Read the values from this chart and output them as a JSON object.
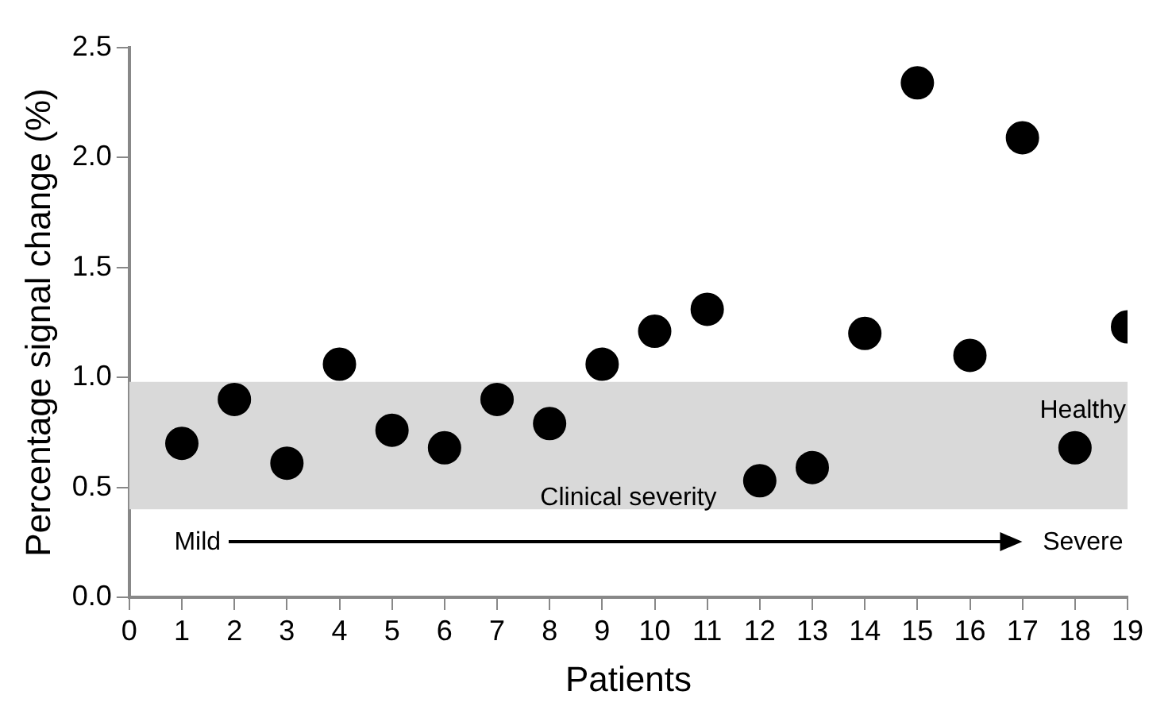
{
  "chart_data": {
    "type": "scatter",
    "xlabel": "Patients",
    "ylabel": "Percentage signal change (%)",
    "x": [
      1,
      2,
      3,
      4,
      5,
      6,
      7,
      8,
      9,
      10,
      11,
      12,
      13,
      14,
      15,
      16,
      17,
      18,
      19
    ],
    "values": [
      0.7,
      0.9,
      0.61,
      1.06,
      0.76,
      0.68,
      0.9,
      0.79,
      1.06,
      1.21,
      1.31,
      0.53,
      0.59,
      1.2,
      2.34,
      1.1,
      2.09,
      0.68,
      1.23
    ],
    "color": "#000000",
    "marker": "circle",
    "legend": false,
    "grid": false,
    "xlim": [
      0,
      19
    ],
    "xticks": [
      0,
      1,
      2,
      3,
      4,
      5,
      6,
      7,
      8,
      9,
      10,
      11,
      12,
      13,
      14,
      15,
      16,
      17,
      18,
      19
    ],
    "ylim": [
      0,
      2.5
    ],
    "yticks": [
      {
        "value": 0,
        "label": "0.0"
      },
      {
        "value": 0.5,
        "label": "0.5"
      },
      {
        "value": 1,
        "label": "1.0"
      },
      {
        "value": 1.5,
        "label": "1.5"
      },
      {
        "value": 2,
        "label": "2.0"
      },
      {
        "value": 2.5,
        "label": "2.5"
      }
    ],
    "bands": [
      {
        "axis": "y",
        "from": 0.4,
        "to": 0.98,
        "label": "Healthy",
        "color": "#d9d9d9"
      }
    ],
    "annotations": [
      "Mild",
      "Clinical severity",
      "Severe"
    ]
  }
}
